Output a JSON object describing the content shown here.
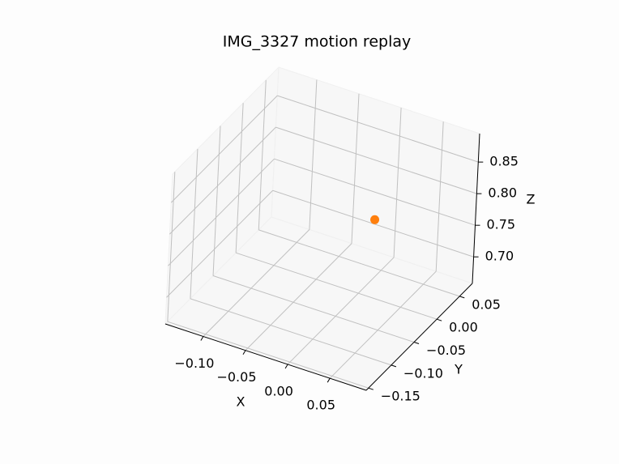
{
  "chart_data": {
    "type": "scatter3d",
    "title": "IMG_3327 motion replay",
    "xlabel": "X",
    "ylabel": "Y",
    "zlabel": "Z",
    "xlim": [
      -0.145,
      0.093
    ],
    "ylim": [
      -0.155,
      0.078
    ],
    "zlim": [
      0.658,
      0.895
    ],
    "xticks": [
      {
        "value": -0.1,
        "label": "−0.10"
      },
      {
        "value": -0.05,
        "label": "−0.05"
      },
      {
        "value": 0,
        "label": "0.00"
      },
      0.05
    ],
    "yticks": [
      {
        "value": -0.15,
        "label": "−0.15"
      },
      {
        "value": -0.1,
        "label": "−0.10"
      },
      {
        "value": -0.05,
        "label": "−0.05"
      },
      {
        "value": 0,
        "label": "0.00"
      },
      0.05
    ],
    "zticks": [
      {
        "value": 0.7,
        "label": "0.70"
      },
      0.75,
      {
        "value": 0.8,
        "label": "0.80"
      },
      0.85
    ],
    "grid": true,
    "series": [
      {
        "color": "#ff7f0e",
        "x": [
          0.015
        ],
        "y": [
          0
        ],
        "z": [
          0.781
        ]
      }
    ]
  }
}
